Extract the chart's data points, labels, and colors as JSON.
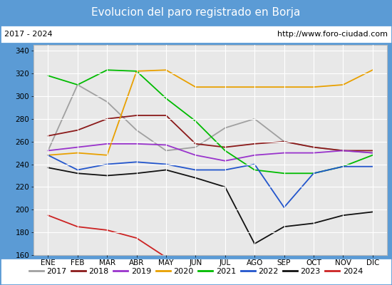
{
  "title": "Evolucion del paro registrado en Borja",
  "subtitle_left": "2017 - 2024",
  "subtitle_right": "http://www.foro-ciudad.com",
  "title_bg_color": "#5b9bd5",
  "title_text_color": "#ffffff",
  "subtitle_bg_color": "#ffffff",
  "subtitle_text_color": "#000000",
  "plot_bg_color": "#e8e8e8",
  "months": [
    "ENE",
    "FEB",
    "MAR",
    "ABR",
    "MAY",
    "JUN",
    "JUL",
    "AGO",
    "SEP",
    "OCT",
    "NOV",
    "DIC"
  ],
  "ylim": [
    160,
    345
  ],
  "yticks": [
    160,
    180,
    200,
    220,
    240,
    260,
    280,
    300,
    320,
    340
  ],
  "series": {
    "2017": {
      "color": "#a0a0a0",
      "data": [
        252,
        310,
        295,
        270,
        252,
        255,
        272,
        280,
        260,
        255,
        252,
        250
      ]
    },
    "2018": {
      "color": "#8b1a1a",
      "data": [
        265,
        270,
        280,
        283,
        283,
        258,
        255,
        258,
        260,
        255,
        252,
        252
      ]
    },
    "2019": {
      "color": "#9933cc",
      "data": [
        252,
        255,
        258,
        258,
        257,
        248,
        243,
        248,
        250,
        250,
        252,
        250
      ]
    },
    "2020": {
      "color": "#e8a000",
      "data": [
        248,
        250,
        248,
        322,
        323,
        308,
        308,
        308,
        308,
        308,
        310,
        323
      ]
    },
    "2021": {
      "color": "#00bb00",
      "data": [
        318,
        310,
        323,
        322,
        298,
        278,
        252,
        235,
        232,
        232,
        238,
        248
      ]
    },
    "2022": {
      "color": "#2255cc",
      "data": [
        248,
        235,
        240,
        242,
        240,
        235,
        235,
        240,
        202,
        232,
        238,
        238
      ]
    },
    "2023": {
      "color": "#111111",
      "data": [
        237,
        232,
        230,
        232,
        235,
        228,
        220,
        170,
        185,
        188,
        195,
        198
      ]
    },
    "2024": {
      "color": "#cc2222",
      "data": [
        195,
        185,
        182,
        175,
        158,
        null,
        null,
        null,
        null,
        null,
        null,
        null
      ]
    }
  },
  "border_color": "#5b9bd5",
  "fig_width": 5.5,
  "fig_height": 4.0,
  "dpi": 100
}
